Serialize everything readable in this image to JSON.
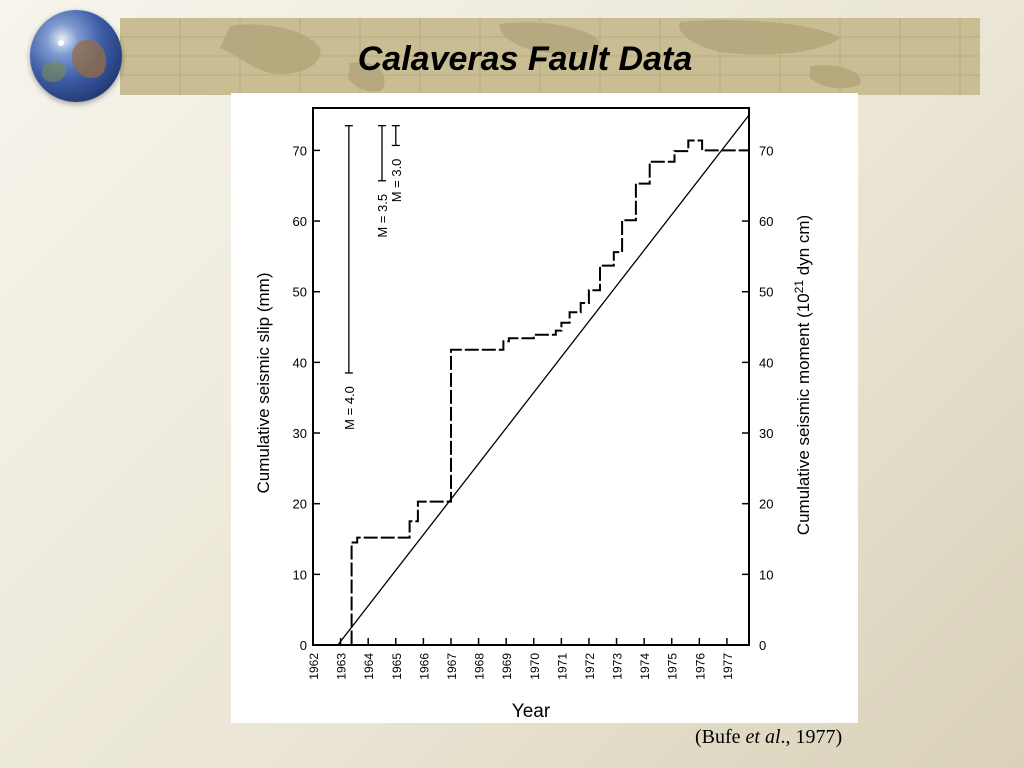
{
  "slide": {
    "title": "Calaveras Fault Data",
    "citation_prefix": "(Bufe ",
    "citation_italic": "et al",
    "citation_suffix": "., 1977)"
  },
  "chart_data": {
    "type": "line",
    "xlabel": "Year",
    "ylabel_left": "Cumulative seismic slip (mm)",
    "ylabel_right_pre": "Cumulative seismic moment (10",
    "ylabel_right_sup": "21",
    "ylabel_right_post": " dyn cm)",
    "x_ticks": [
      "1962",
      "1963",
      "1964",
      "1965",
      "1966",
      "1967",
      "1968",
      "1969",
      "1970",
      "1971",
      "1972",
      "1973",
      "1974",
      "1975",
      "1976",
      "1977"
    ],
    "xlim": [
      1962,
      1977.8
    ],
    "ylim": [
      0,
      76
    ],
    "y_ticks_left": [
      0,
      10,
      20,
      30,
      40,
      50,
      60,
      70
    ],
    "y_ticks_right": [
      0,
      10,
      20,
      30,
      40,
      50,
      60,
      70
    ],
    "series": [
      {
        "style": "step",
        "x": [
          1962.8,
          1963.4,
          1963.4,
          1963.6,
          1963.6,
          1965.5,
          1965.5,
          1965.8,
          1965.8,
          1966.3,
          1966.3,
          1967.0,
          1967.0,
          1968.9,
          1968.9,
          1969.1,
          1969.1,
          1970.0,
          1970.0,
          1970.8,
          1970.8,
          1971.0,
          1971.0,
          1971.3,
          1971.3,
          1971.7,
          1971.7,
          1972.0,
          1972.0,
          1972.4,
          1972.4,
          1972.9,
          1972.9,
          1973.2,
          1973.2,
          1973.7,
          1973.7,
          1974.2,
          1974.2,
          1975.1,
          1975.1,
          1975.6,
          1975.6,
          1976.1,
          1976.1,
          1976.5,
          1976.5,
          1977.8
        ],
        "y": [
          0,
          0,
          14.5,
          14.5,
          15.2,
          15.2,
          17.5,
          17.5,
          20.3,
          20.3,
          20.3,
          20.3,
          41.8,
          41.8,
          43.0,
          43.0,
          43.4,
          43.4,
          43.9,
          43.9,
          44.5,
          44.5,
          45.6,
          45.6,
          47.1,
          47.1,
          48.4,
          48.4,
          50.2,
          50.2,
          53.7,
          53.7,
          55.6,
          55.6,
          60.1,
          60.1,
          65.3,
          65.3,
          68.4,
          68.4,
          69.9,
          69.9,
          71.4,
          71.4,
          70.0,
          70.0,
          70.0,
          70.0
        ]
      },
      {
        "style": "trend",
        "x": [
          1962.9,
          1977.8
        ],
        "y": [
          0,
          75
        ]
      }
    ],
    "annotations": [
      {
        "label": "M = 4.0",
        "x": 1963.3,
        "y_low": 38.5,
        "y_high": 73.5
      },
      {
        "label": "M = 3.5",
        "x": 1964.5,
        "y_low": 65.7,
        "y_high": 73.5
      },
      {
        "label": "M = 3.0",
        "x": 1965.0,
        "y_low": 70.7,
        "y_high": 73.5
      }
    ]
  }
}
